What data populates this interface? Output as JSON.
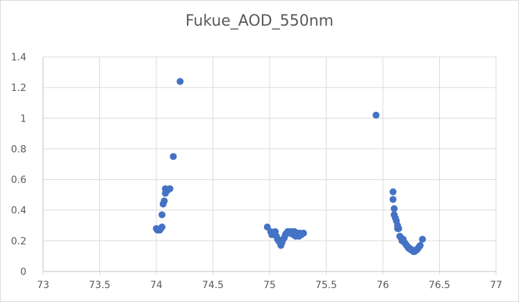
{
  "chart_data": {
    "type": "scatter",
    "title": "Fukue_AOD_550nm",
    "xlabel": "",
    "ylabel": "",
    "xlim": [
      73,
      77
    ],
    "ylim": [
      0,
      1.4
    ],
    "xticks": [
      "73",
      "73.5",
      "74",
      "74.5",
      "75",
      "75.5",
      "76",
      "76.5",
      "77"
    ],
    "yticks": [
      "0",
      "0.2",
      "0.4",
      "0.6",
      "0.8",
      "1",
      "1.2",
      "1.4"
    ],
    "grid": true,
    "marker_color": "#4472c4",
    "gridline_color": "#d9d9d9",
    "series": [
      {
        "points": [
          [
            74.0,
            0.28
          ],
          [
            74.01,
            0.27
          ],
          [
            74.02,
            0.27
          ],
          [
            74.03,
            0.27
          ],
          [
            74.04,
            0.28
          ],
          [
            74.05,
            0.29
          ],
          [
            74.05,
            0.37
          ],
          [
            74.06,
            0.44
          ],
          [
            74.07,
            0.46
          ],
          [
            74.08,
            0.51
          ],
          [
            74.08,
            0.54
          ],
          [
            74.1,
            0.53
          ],
          [
            74.12,
            0.54
          ],
          [
            74.15,
            0.75
          ],
          [
            74.21,
            1.24
          ],
          [
            74.98,
            0.29
          ],
          [
            75.01,
            0.26
          ],
          [
            75.02,
            0.24
          ],
          [
            75.04,
            0.25
          ],
          [
            75.05,
            0.26
          ],
          [
            75.06,
            0.23
          ],
          [
            75.07,
            0.21
          ],
          [
            75.08,
            0.2
          ],
          [
            75.09,
            0.19
          ],
          [
            75.1,
            0.18
          ],
          [
            75.1,
            0.17
          ],
          [
            75.11,
            0.19
          ],
          [
            75.12,
            0.21
          ],
          [
            75.13,
            0.22
          ],
          [
            75.14,
            0.24
          ],
          [
            75.15,
            0.25
          ],
          [
            75.16,
            0.26
          ],
          [
            75.17,
            0.26
          ],
          [
            75.18,
            0.25
          ],
          [
            75.19,
            0.26
          ],
          [
            75.2,
            0.26
          ],
          [
            75.21,
            0.24
          ],
          [
            75.22,
            0.26
          ],
          [
            75.23,
            0.23
          ],
          [
            75.24,
            0.24
          ],
          [
            75.25,
            0.25
          ],
          [
            75.26,
            0.23
          ],
          [
            75.27,
            0.25
          ],
          [
            75.28,
            0.24
          ],
          [
            75.3,
            0.25
          ],
          [
            75.94,
            1.02
          ],
          [
            76.09,
            0.52
          ],
          [
            76.09,
            0.47
          ],
          [
            76.1,
            0.41
          ],
          [
            76.1,
            0.37
          ],
          [
            76.11,
            0.35
          ],
          [
            76.12,
            0.33
          ],
          [
            76.13,
            0.3
          ],
          [
            76.13,
            0.28
          ],
          [
            76.14,
            0.28
          ],
          [
            76.15,
            0.23
          ],
          [
            76.16,
            0.22
          ],
          [
            76.17,
            0.2
          ],
          [
            76.18,
            0.21
          ],
          [
            76.19,
            0.19
          ],
          [
            76.2,
            0.18
          ],
          [
            76.21,
            0.17
          ],
          [
            76.22,
            0.16
          ],
          [
            76.23,
            0.15
          ],
          [
            76.24,
            0.15
          ],
          [
            76.25,
            0.14
          ],
          [
            76.26,
            0.14
          ],
          [
            76.27,
            0.13
          ],
          [
            76.28,
            0.13
          ],
          [
            76.29,
            0.14
          ],
          [
            76.3,
            0.14
          ],
          [
            76.31,
            0.15
          ],
          [
            76.32,
            0.16
          ],
          [
            76.33,
            0.17
          ],
          [
            76.35,
            0.21
          ]
        ]
      }
    ]
  }
}
